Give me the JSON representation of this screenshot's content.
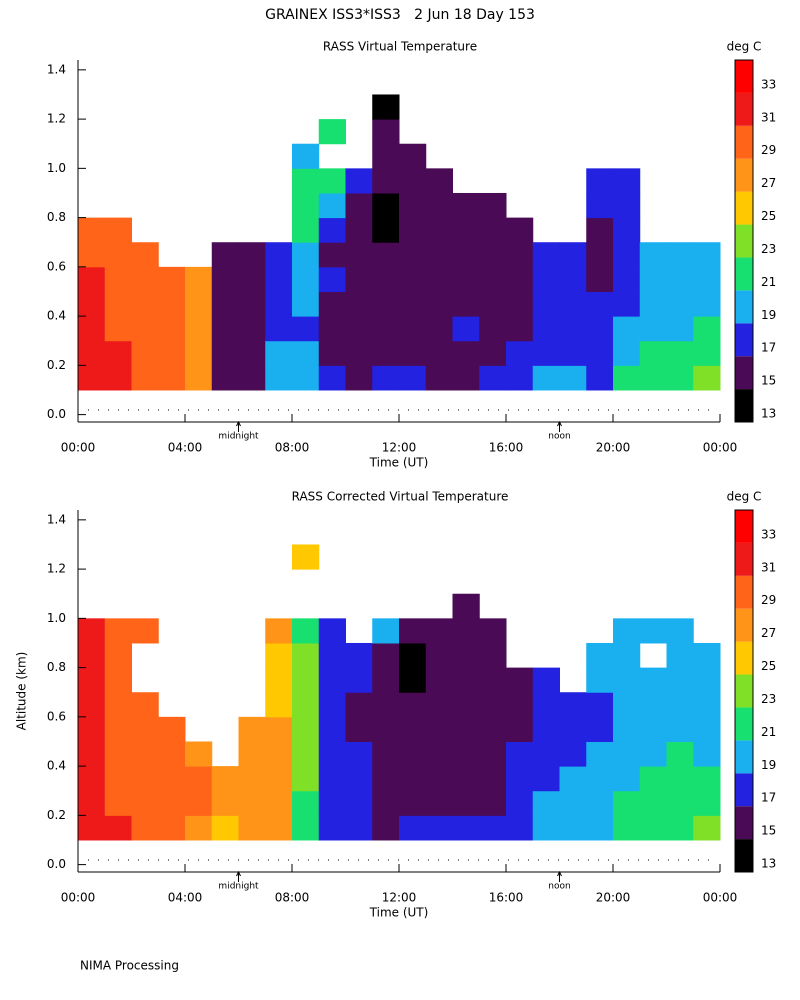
{
  "title": "GRAINEX ISS3*ISS3   2 Jun 18 Day 153",
  "footer": "NIMA Processing",
  "chart_data": [
    {
      "type": "heatmap",
      "title": "RASS Virtual Temperature",
      "xlabel": "Time (UT)",
      "colorbar_label": "deg C",
      "xlim": [
        0,
        24
      ],
      "ylim": [
        -0.03,
        1.44
      ],
      "xticks": [
        {
          "value": 0,
          "label": "00:00"
        },
        {
          "value": 4,
          "label": "04:00"
        },
        {
          "value": 8,
          "label": "08:00"
        },
        {
          "value": 12,
          "label": "12:00"
        },
        {
          "value": 16,
          "label": "16:00"
        },
        {
          "value": 20,
          "label": "20:00"
        },
        {
          "value": 24,
          "label": "00:00"
        }
      ],
      "yticks": [
        {
          "value": 0,
          "label": "0.0"
        },
        0.2,
        0.4,
        0.6,
        0.8,
        {
          "value": 1,
          "label": "1.0"
        },
        1.2,
        1.4
      ],
      "annotations": [
        {
          "x": 6,
          "label": "midnight"
        },
        {
          "x": 18,
          "label": "noon"
        }
      ],
      "levels": [
        13,
        15,
        17,
        19,
        21,
        23,
        25,
        27,
        29,
        31,
        33,
        35
      ],
      "colorbar_ticks": [
        13,
        15,
        17,
        19,
        21,
        23,
        25,
        27,
        29,
        31,
        33
      ],
      "colors": [
        "#000000",
        "#4b0a55",
        "#2222e0",
        "#1ab0f0",
        "#18e070",
        "#80e028",
        "#ffc800",
        "#ff9418",
        "#ff6418",
        "#ee1a1a",
        "#ff0000"
      ],
      "x": [
        0.5,
        1.5,
        2.5,
        3.5,
        4.5,
        5.5,
        6.5,
        7.5,
        8.5,
        9.5,
        10.5,
        11.5,
        12.5,
        13.5,
        14.5,
        15.5,
        16.5,
        17.5,
        18.5,
        19.5,
        20.5,
        21.5,
        22.5,
        23.5
      ],
      "y": [
        0.15,
        0.25,
        0.35,
        0.45,
        0.55,
        0.65,
        0.75,
        0.85,
        0.95,
        1.05,
        1.15,
        1.25
      ],
      "values": [
        [
          32,
          32,
          32,
          32,
          32,
          30,
          30,
          null,
          null,
          null,
          null,
          null
        ],
        [
          32,
          32,
          30,
          30,
          30,
          30,
          30,
          null,
          null,
          null,
          null,
          null
        ],
        [
          30,
          30,
          30,
          30,
          30,
          30,
          null,
          null,
          null,
          null,
          null,
          null
        ],
        [
          30,
          30,
          30,
          30,
          30,
          null,
          null,
          null,
          null,
          null,
          null,
          null
        ],
        [
          28,
          28,
          28,
          28,
          28,
          null,
          null,
          null,
          null,
          null,
          null,
          null
        ],
        [
          16,
          16,
          16,
          16,
          16,
          16,
          null,
          null,
          null,
          null,
          null,
          null
        ],
        [
          16,
          16,
          16,
          16,
          16,
          16,
          null,
          null,
          null,
          null,
          null,
          null
        ],
        [
          20,
          20,
          18,
          18,
          18,
          18,
          null,
          null,
          null,
          null,
          null,
          null
        ],
        [
          20,
          20,
          18,
          20,
          20,
          20,
          22,
          22,
          22,
          20,
          null,
          null
        ],
        [
          18,
          16,
          16,
          16,
          18,
          16,
          18,
          20,
          22,
          null,
          22,
          null
        ],
        [
          16,
          16,
          16,
          16,
          16,
          16,
          16,
          16,
          18,
          null,
          null,
          null
        ],
        [
          18,
          16,
          16,
          16,
          16,
          16,
          14,
          14,
          16,
          16,
          16,
          14
        ],
        [
          18,
          16,
          16,
          16,
          16,
          16,
          16,
          16,
          16,
          16,
          null,
          null
        ],
        [
          16,
          16,
          16,
          16,
          16,
          16,
          16,
          16,
          16,
          null,
          null,
          null
        ],
        [
          16,
          16,
          18,
          16,
          16,
          16,
          16,
          16,
          null,
          null,
          null,
          null
        ],
        [
          18,
          16,
          16,
          16,
          16,
          16,
          16,
          16,
          null,
          null,
          null,
          null
        ],
        [
          18,
          18,
          16,
          16,
          16,
          16,
          16,
          null,
          null,
          null,
          null,
          null
        ],
        [
          20,
          18,
          18,
          18,
          18,
          18,
          null,
          null,
          null,
          null,
          null,
          null
        ],
        [
          20,
          18,
          18,
          18,
          18,
          18,
          null,
          null,
          null,
          null,
          null,
          null
        ],
        [
          18,
          18,
          18,
          18,
          16,
          16,
          16,
          18,
          18,
          null,
          null,
          null
        ],
        [
          22,
          20,
          20,
          18,
          18,
          18,
          18,
          18,
          18,
          null,
          null,
          null
        ],
        [
          22,
          22,
          20,
          20,
          20,
          20,
          null,
          null,
          null,
          null,
          null,
          null
        ],
        [
          22,
          22,
          20,
          20,
          20,
          20,
          null,
          null,
          null,
          null,
          null,
          null
        ],
        [
          24,
          22,
          22,
          20,
          20,
          20,
          null,
          null,
          null,
          null,
          null,
          null
        ]
      ]
    },
    {
      "type": "heatmap",
      "title": "RASS Corrected Virtual Temperature",
      "xlabel": "Time (UT)",
      "ylabel": "Altitude (km)",
      "colorbar_label": "deg C",
      "xlim": [
        0,
        24
      ],
      "ylim": [
        -0.03,
        1.44
      ],
      "xticks": [
        {
          "value": 0,
          "label": "00:00"
        },
        {
          "value": 4,
          "label": "04:00"
        },
        {
          "value": 8,
          "label": "08:00"
        },
        {
          "value": 12,
          "label": "12:00"
        },
        {
          "value": 16,
          "label": "16:00"
        },
        {
          "value": 20,
          "label": "20:00"
        },
        {
          "value": 24,
          "label": "00:00"
        }
      ],
      "yticks": [
        {
          "value": 0,
          "label": "0.0"
        },
        0.2,
        0.4,
        0.6,
        0.8,
        {
          "value": 1,
          "label": "1.0"
        },
        1.2,
        1.4
      ],
      "annotations": [
        {
          "x": 6,
          "label": "midnight"
        },
        {
          "x": 18,
          "label": "noon"
        }
      ],
      "levels": [
        13,
        15,
        17,
        19,
        21,
        23,
        25,
        27,
        29,
        31,
        33,
        35
      ],
      "colorbar_ticks": [
        13,
        15,
        17,
        19,
        21,
        23,
        25,
        27,
        29,
        31,
        33
      ],
      "colors": [
        "#000000",
        "#4b0a55",
        "#2222e0",
        "#1ab0f0",
        "#18e070",
        "#80e028",
        "#ffc800",
        "#ff9418",
        "#ff6418",
        "#ee1a1a",
        "#ff0000"
      ],
      "x": [
        0.5,
        1.5,
        2.5,
        3.5,
        4.5,
        5.5,
        6.5,
        7.5,
        8.5,
        9.5,
        10.5,
        11.5,
        12.5,
        13.5,
        14.5,
        15.5,
        16.5,
        17.5,
        18.5,
        19.5,
        20.5,
        21.5,
        22.5,
        23.5
      ],
      "y": [
        0.15,
        0.25,
        0.35,
        0.45,
        0.55,
        0.65,
        0.75,
        0.85,
        0.95,
        1.05,
        1.15,
        1.25
      ],
      "values": [
        [
          32,
          32,
          32,
          32,
          32,
          32,
          32,
          32,
          32,
          null,
          null,
          null
        ],
        [
          32,
          30,
          30,
          30,
          30,
          30,
          30,
          30,
          30,
          null,
          null,
          null
        ],
        [
          30,
          30,
          30,
          30,
          30,
          30,
          null,
          null,
          30,
          null,
          null,
          null
        ],
        [
          30,
          30,
          30,
          30,
          30,
          null,
          null,
          null,
          null,
          null,
          null,
          null
        ],
        [
          28,
          30,
          30,
          28,
          null,
          null,
          null,
          null,
          null,
          null,
          null,
          null
        ],
        [
          26,
          28,
          28,
          null,
          null,
          null,
          null,
          null,
          null,
          null,
          null,
          null
        ],
        [
          28,
          28,
          28,
          28,
          28,
          null,
          null,
          null,
          null,
          null,
          null,
          null
        ],
        [
          28,
          28,
          28,
          28,
          28,
          26,
          26,
          26,
          28,
          null,
          null,
          null
        ],
        [
          22,
          22,
          24,
          24,
          24,
          24,
          24,
          24,
          22,
          null,
          null,
          26
        ],
        [
          18,
          18,
          18,
          18,
          18,
          18,
          18,
          18,
          18,
          null,
          null,
          null
        ],
        [
          18,
          18,
          18,
          18,
          16,
          16,
          18,
          18,
          null,
          null,
          null,
          null
        ],
        [
          16,
          16,
          16,
          16,
          16,
          16,
          16,
          16,
          20,
          null,
          null,
          null
        ],
        [
          18,
          16,
          16,
          16,
          16,
          16,
          14,
          14,
          16,
          null,
          null,
          null
        ],
        [
          18,
          16,
          16,
          16,
          16,
          16,
          16,
          16,
          16,
          null,
          null,
          null
        ],
        [
          18,
          16,
          16,
          16,
          16,
          16,
          16,
          16,
          16,
          16,
          null,
          null
        ],
        [
          18,
          16,
          16,
          16,
          16,
          16,
          16,
          16,
          16,
          null,
          null,
          null
        ],
        [
          18,
          18,
          18,
          18,
          16,
          16,
          16,
          null,
          null,
          null,
          null,
          null
        ],
        [
          20,
          20,
          18,
          18,
          18,
          18,
          18,
          null,
          null,
          null,
          null,
          null
        ],
        [
          20,
          20,
          20,
          18,
          18,
          18,
          null,
          null,
          null,
          null,
          null,
          null
        ],
        [
          20,
          20,
          20,
          20,
          18,
          18,
          20,
          20,
          null,
          null,
          null,
          null
        ],
        [
          22,
          22,
          20,
          20,
          20,
          20,
          20,
          20,
          20,
          null,
          null,
          null
        ],
        [
          22,
          22,
          22,
          20,
          20,
          20,
          20,
          null,
          20,
          null,
          null,
          null
        ],
        [
          22,
          22,
          22,
          22,
          20,
          20,
          20,
          20,
          20,
          null,
          null,
          null
        ],
        [
          24,
          22,
          22,
          20,
          20,
          20,
          20,
          20,
          null,
          null,
          null,
          null
        ]
      ]
    }
  ]
}
